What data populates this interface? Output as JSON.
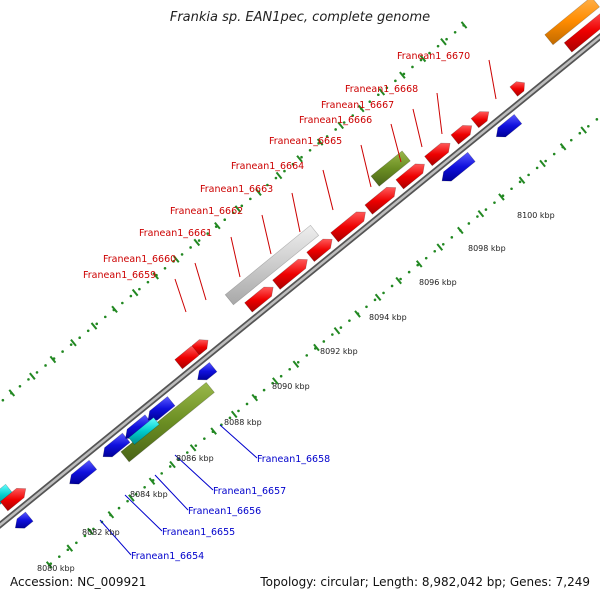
{
  "title": "Frankia sp. EAN1pec, complete genome",
  "footer": {
    "accession": "Accession: NC_009921",
    "topology": "Topology: circular; Length: 8,982,042 bp; Genes: 7,249"
  },
  "colors": {
    "forward_gene": "#ee0000",
    "reverse_gene": "#1010dd",
    "rrna": "#6b8e23",
    "trna": "#00cccc",
    "pseudogene": "#cccccc",
    "other": "#ff8c00",
    "dots": "#228822",
    "backbone": "#888888",
    "forward_label": "#cc0000",
    "reverse_label": "#0000cc"
  },
  "scale_labels": [
    "8080 kbp",
    "8082 kbp",
    "8084 kbp",
    "8086 kbp",
    "8088 kbp",
    "8090 kbp",
    "8092 kbp",
    "8094 kbp",
    "8096 kbp",
    "8098 kbp",
    "8100 kbp"
  ],
  "forward_labels": [
    "Franean1_6659",
    "Franean1_6660",
    "Franean1_6661",
    "Franean1_6662",
    "Franean1_6663",
    "Franean1_6664",
    "Franean1_6665",
    "Franean1_6666",
    "Franean1_6667",
    "Franean1_6668",
    "Franean1_6670"
  ],
  "reverse_labels": [
    "Franean1_6654",
    "Franean1_6655",
    "Franean1_6656",
    "Franean1_6657",
    "Franean1_6658"
  ]
}
